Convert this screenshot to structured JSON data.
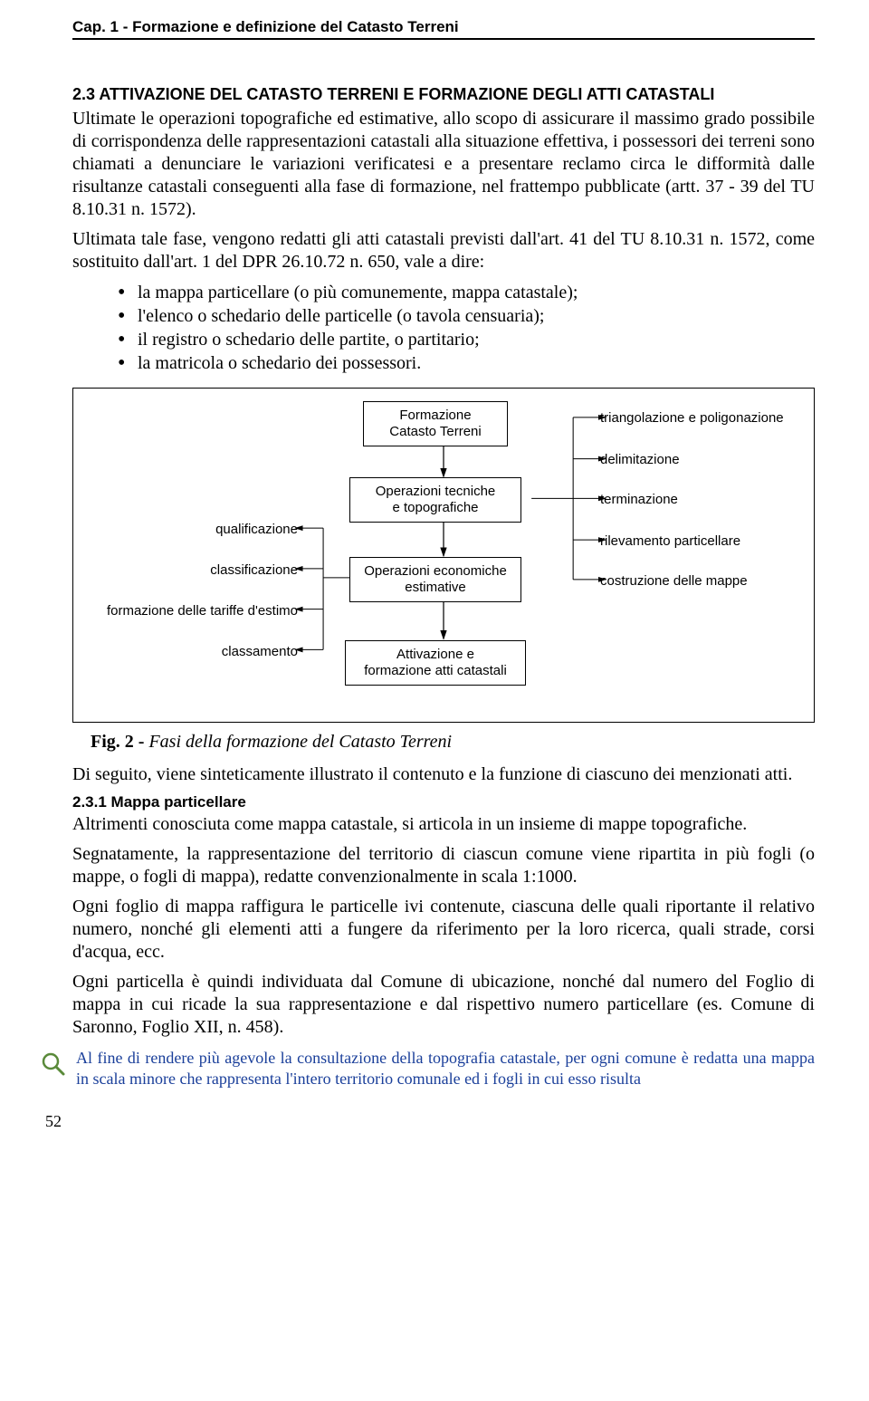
{
  "header": "Cap. 1 - Formazione e definizione del Catasto Terreni",
  "section": {
    "number_title": "2.3  ATTIVAZIONE DEL CATASTO TERRENI E FORMAZIONE DEGLI ATTI CATASTALI",
    "paragraphs": [
      "Ultimate le operazioni topografiche ed estimative, allo scopo di assicurare il massimo grado possibile di corrispondenza delle rappresentazioni catastali alla situazione effettiva, i possessori dei terreni sono chiamati a denunciare le variazioni verificatesi e a presentare reclamo circa le difformità dalle risultanze catastali conseguenti alla fase di formazione, nel frattempo pubblicate (artt. 37 - 39 del TU 8.10.31 n. 1572).",
      "Ultimata tale fase, vengono redatti gli atti catastali previsti dall'art. 41 del TU 8.10.31 n. 1572, come sostituito dall'art. 1 del DPR 26.10.72 n. 650, vale a dire:"
    ],
    "bullets": [
      "la mappa particellare (o più comunemente, mappa catastale);",
      "l'elenco o schedario delle particelle (o tavola censuaria);",
      "il registro o schedario delle partite, o partitario;",
      "la matricola o schedario dei possessori."
    ]
  },
  "flowchart": {
    "boxes": {
      "b1": "Formazione\nCatasto Terreni",
      "b2": "Operazioni tecniche\ne topografiche",
      "b3": "Operazioni economiche\nestimative",
      "b4": "Attivazione e\nformazione atti catastali"
    },
    "left_labels": {
      "l1": "qualificazione",
      "l2": "classificazione",
      "l3": "formazione delle tariffe d'estimo",
      "l4": "classamento"
    },
    "right_labels": {
      "r1": "triangolazione e poligonazione",
      "r2": "delimitazione",
      "r3": "terminazione",
      "r4": "rilevamento particellare",
      "r5": "costruzione delle mappe"
    }
  },
  "fig_caption_bold": "Fig. 2 - ",
  "fig_caption_italic": "Fasi della formazione del Catasto Terreni",
  "after_fig": "Di seguito, viene sinteticamente illustrato il contenuto e la funzione di ciascuno dei menzionati atti.",
  "subsection": {
    "title": "2.3.1  Mappa particellare",
    "paragraphs": [
      "Altrimenti conosciuta come mappa catastale, si articola in un insieme di mappe topografiche.",
      "Segnatamente, la rappresentazione del territorio di ciascun comune viene ripartita in più fogli (o mappe, o fogli di mappa), redatte convenzionalmente in scala 1:1000.",
      "Ogni foglio di mappa raffigura le particelle ivi contenute, ciascuna delle quali riportante il relativo numero, nonché gli elementi atti a fungere da riferimento per la loro ricerca, quali strade, corsi d'acqua, ecc.",
      "Ogni particella è quindi individuata dal Comune di ubicazione, nonché dal numero del Foglio di mappa in cui ricade la sua rappresentazione e dal rispettivo numero particellare (es. Comune di Saronno, Foglio XII, n. 458)."
    ]
  },
  "note_text": "Al fine di rendere più agevole la consultazione della topografia catastale, per ogni comune è redatta una mappa in scala minore che rappresenta l'intero territorio comunale ed i fogli in cui esso risulta",
  "page_number": "52",
  "colors": {
    "note_color": "#1a3f9a",
    "text_color": "#000000",
    "border_color": "#000000"
  }
}
